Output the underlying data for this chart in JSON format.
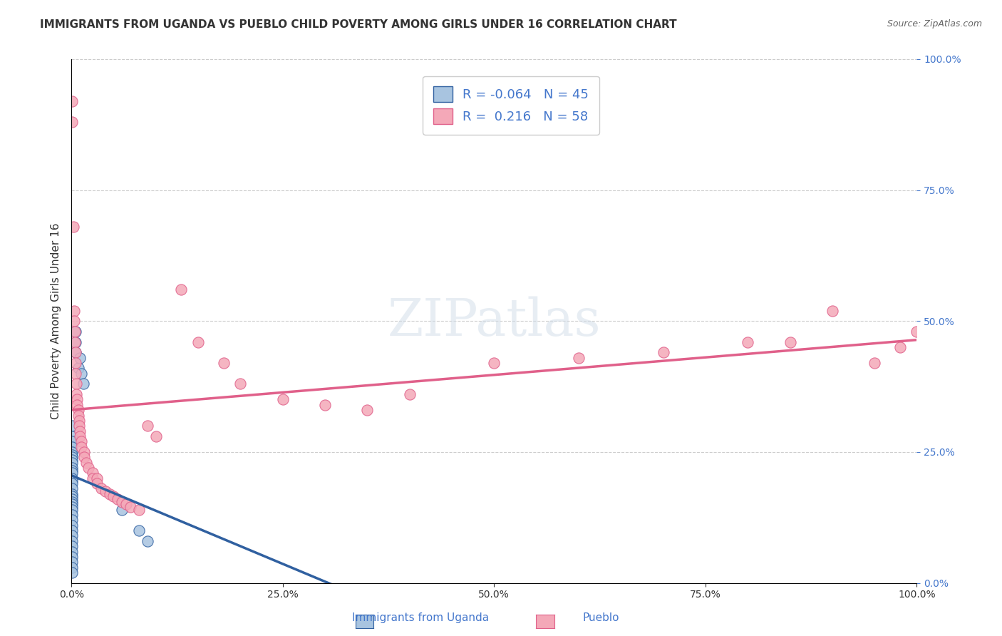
{
  "title": "IMMIGRANTS FROM UGANDA VS PUEBLO CHILD POVERTY AMONG GIRLS UNDER 16 CORRELATION CHART",
  "source": "Source: ZipAtlas.com",
  "ylabel": "Child Poverty Among Girls Under 16",
  "xlabel_legend_blue": "Immigrants from Uganda",
  "xlabel_legend_pink": "Pueblo",
  "r_blue": -0.064,
  "n_blue": 45,
  "r_pink": 0.216,
  "n_pink": 58,
  "blue_color": "#a8c4e0",
  "pink_color": "#f4a8b8",
  "blue_line_color": "#3060a0",
  "pink_line_color": "#e0608a",
  "blue_scatter": [
    [
      0.001,
      0.3
    ],
    [
      0.001,
      0.28
    ],
    [
      0.001,
      0.27
    ],
    [
      0.001,
      0.26
    ],
    [
      0.001,
      0.25
    ],
    [
      0.001,
      0.245
    ],
    [
      0.001,
      0.24
    ],
    [
      0.001,
      0.235
    ],
    [
      0.001,
      0.23
    ],
    [
      0.001,
      0.22
    ],
    [
      0.001,
      0.215
    ],
    [
      0.001,
      0.21
    ],
    [
      0.001,
      0.2
    ],
    [
      0.001,
      0.195
    ],
    [
      0.001,
      0.19
    ],
    [
      0.001,
      0.18
    ],
    [
      0.001,
      0.17
    ],
    [
      0.001,
      0.165
    ],
    [
      0.001,
      0.16
    ],
    [
      0.001,
      0.155
    ],
    [
      0.001,
      0.15
    ],
    [
      0.001,
      0.145
    ],
    [
      0.001,
      0.14
    ],
    [
      0.001,
      0.13
    ],
    [
      0.001,
      0.12
    ],
    [
      0.001,
      0.11
    ],
    [
      0.001,
      0.1
    ],
    [
      0.001,
      0.09
    ],
    [
      0.001,
      0.08
    ],
    [
      0.001,
      0.07
    ],
    [
      0.001,
      0.06
    ],
    [
      0.001,
      0.05
    ],
    [
      0.001,
      0.04
    ],
    [
      0.001,
      0.03
    ],
    [
      0.001,
      0.02
    ],
    [
      0.005,
      0.48
    ],
    [
      0.005,
      0.46
    ],
    [
      0.005,
      0.44
    ],
    [
      0.008,
      0.41
    ],
    [
      0.01,
      0.43
    ],
    [
      0.012,
      0.4
    ],
    [
      0.014,
      0.38
    ],
    [
      0.06,
      0.14
    ],
    [
      0.08,
      0.1
    ],
    [
      0.09,
      0.08
    ]
  ],
  "pink_scatter": [
    [
      0.001,
      0.92
    ],
    [
      0.001,
      0.88
    ],
    [
      0.002,
      0.68
    ],
    [
      0.003,
      0.52
    ],
    [
      0.003,
      0.5
    ],
    [
      0.004,
      0.48
    ],
    [
      0.004,
      0.46
    ],
    [
      0.005,
      0.44
    ],
    [
      0.005,
      0.42
    ],
    [
      0.005,
      0.4
    ],
    [
      0.006,
      0.38
    ],
    [
      0.006,
      0.36
    ],
    [
      0.007,
      0.35
    ],
    [
      0.007,
      0.34
    ],
    [
      0.008,
      0.33
    ],
    [
      0.008,
      0.32
    ],
    [
      0.009,
      0.31
    ],
    [
      0.009,
      0.3
    ],
    [
      0.01,
      0.29
    ],
    [
      0.01,
      0.28
    ],
    [
      0.012,
      0.27
    ],
    [
      0.012,
      0.26
    ],
    [
      0.015,
      0.25
    ],
    [
      0.015,
      0.24
    ],
    [
      0.018,
      0.23
    ],
    [
      0.02,
      0.22
    ],
    [
      0.025,
      0.21
    ],
    [
      0.025,
      0.2
    ],
    [
      0.03,
      0.2
    ],
    [
      0.03,
      0.19
    ],
    [
      0.035,
      0.18
    ],
    [
      0.04,
      0.175
    ],
    [
      0.045,
      0.17
    ],
    [
      0.05,
      0.165
    ],
    [
      0.055,
      0.16
    ],
    [
      0.06,
      0.155
    ],
    [
      0.065,
      0.15
    ],
    [
      0.07,
      0.145
    ],
    [
      0.08,
      0.14
    ],
    [
      0.09,
      0.3
    ],
    [
      0.1,
      0.28
    ],
    [
      0.13,
      0.56
    ],
    [
      0.15,
      0.46
    ],
    [
      0.18,
      0.42
    ],
    [
      0.2,
      0.38
    ],
    [
      0.25,
      0.35
    ],
    [
      0.3,
      0.34
    ],
    [
      0.35,
      0.33
    ],
    [
      0.4,
      0.36
    ],
    [
      0.5,
      0.42
    ],
    [
      0.6,
      0.43
    ],
    [
      0.7,
      0.44
    ],
    [
      0.8,
      0.46
    ],
    [
      0.85,
      0.46
    ],
    [
      0.9,
      0.52
    ],
    [
      0.95,
      0.42
    ],
    [
      0.98,
      0.45
    ],
    [
      1.0,
      0.48
    ]
  ],
  "watermark": "ZIPatlas",
  "title_fontsize": 11,
  "axis_label_fontsize": 11,
  "tick_fontsize": 10,
  "legend_fontsize": 13,
  "source_fontsize": 9,
  "background_color": "#ffffff",
  "grid_color": "#cccccc",
  "right_tick_color": "#4477cc",
  "xlim": [
    0.0,
    1.0
  ],
  "ylim": [
    0.0,
    1.0
  ],
  "yticks": [
    0.0,
    0.25,
    0.5,
    0.75,
    1.0
  ],
  "xticks": [
    0.0,
    0.25,
    0.5,
    0.75,
    1.0
  ]
}
